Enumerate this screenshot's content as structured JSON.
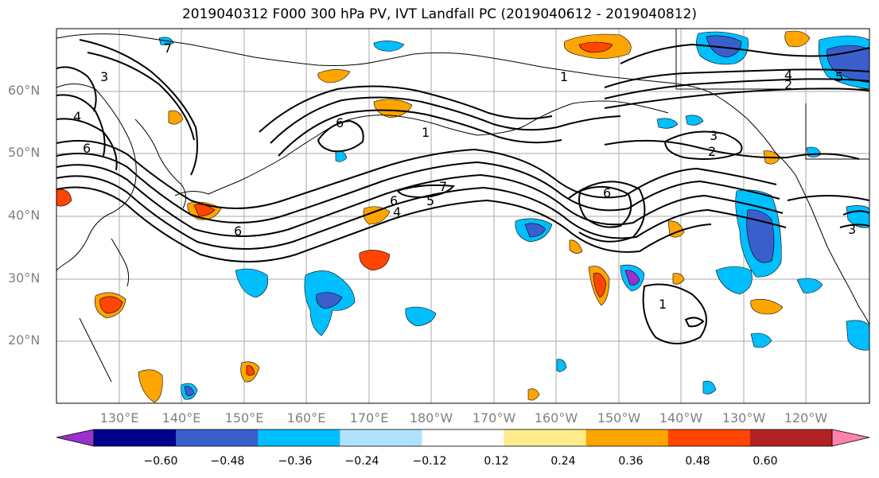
{
  "title": "2019040312 F000 300 hPa PV, IVT Landfall PC (2019040612 - 2019040812)",
  "lat_labels": [
    "60°N",
    "50°N",
    "40°N",
    "30°N",
    "20°N"
  ],
  "lon_labels": [
    "130°E",
    "140°E",
    "150°E",
    "160°E",
    "170°E",
    "180°W",
    "170°W",
    "160°W",
    "150°W",
    "140°W",
    "130°W",
    "120°W"
  ],
  "colorbar": {
    "tick_labels": [
      "−0.60",
      "−0.48",
      "−0.36",
      "−0.24",
      "−0.12",
      "0.12",
      "0.24",
      "0.36",
      "0.48",
      "0.60"
    ],
    "colors": [
      "#9932cc",
      "#00008b",
      "#3a5fcd",
      "#00bfff",
      "#b0e2ff",
      "#ffffff",
      "#ffec8b",
      "#ffa500",
      "#ff4500",
      "#b22222",
      "#ff82ab"
    ]
  },
  "contour_labels": [
    "1",
    "2",
    "3",
    "4",
    "5",
    "6",
    "7"
  ]
}
